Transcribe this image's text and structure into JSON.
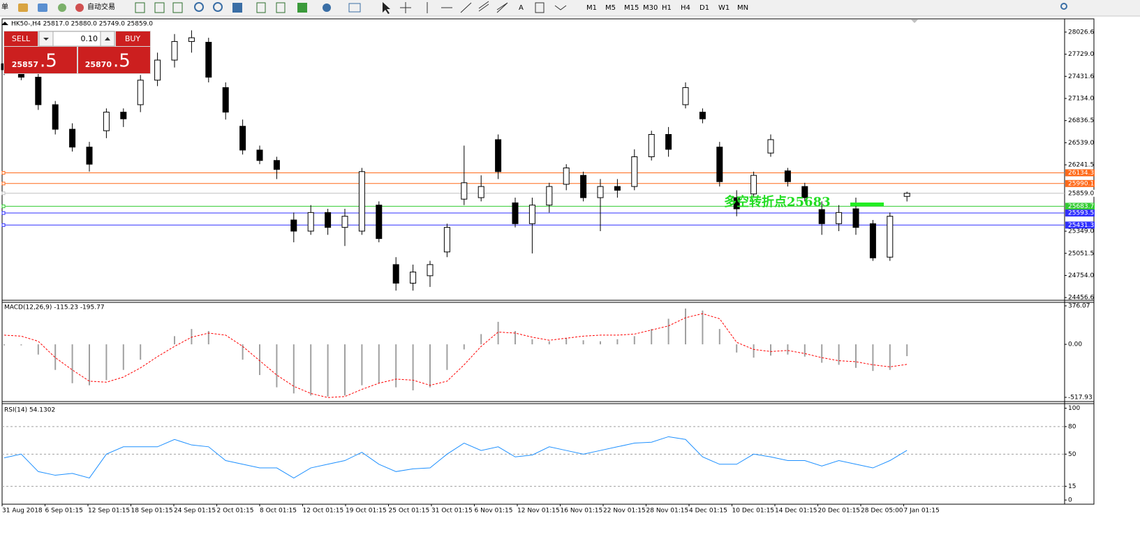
{
  "toolbar": {
    "items": [
      "单",
      "自动交易",
      "A",
      "M1",
      "M5",
      "M15",
      "M30",
      "H1",
      "H4",
      "D1",
      "W1",
      "MN"
    ]
  },
  "trade_panel": {
    "sell": "SELL",
    "buy": "BUY",
    "volume": "0.10",
    "bid_main": "25857",
    "bid_frac": ".5",
    "ask_main": "25870",
    "ask_frac": ".5"
  },
  "time_axis": [
    "31 Aug 2018",
    "6 Sep 01:15",
    "12 Sep 01:15",
    "18 Sep 01:15",
    "24 Sep 01:15",
    "2 Oct 01:15",
    "8 Oct 01:15",
    "12 Oct 01:15",
    "19 Oct 01:15",
    "25 Oct 01:15",
    "31 Oct 01:15",
    "6 Nov 01:15",
    "12 Nov 01:15",
    "16 Nov 01:15",
    "22 Nov 01:15",
    "28 Nov 01:15",
    "4 Dec 01:15",
    "10 Dec 01:15",
    "14 Dec 01:15",
    "20 Dec 01:15",
    "28 Dec 05:00",
    "7 Jan 01:15"
  ],
  "chart_data": [
    {
      "type": "candlestick",
      "title": "HK50-,H4  25817.0 25880.0 25749.0 25859.0",
      "annotation": "多空转折点25683",
      "open": [
        27600,
        27520,
        27420,
        27050,
        26720,
        26480,
        26700,
        26950,
        27050,
        27380,
        27650,
        27900,
        27890,
        27280,
        26760,
        26440,
        26300,
        25500,
        25350,
        25600,
        25400,
        25350,
        25700,
        24900,
        24650,
        24750,
        25070,
        25780,
        25800,
        26580,
        25730,
        25450,
        25700,
        25980,
        26100,
        25800,
        25950,
        25950,
        26350,
        26650,
        27050,
        26950,
        26480,
        25800,
        25850,
        26400,
        26160,
        25950,
        25640,
        25450,
        25650,
        25450,
        25000,
        25817
      ],
      "high": [
        27700,
        27600,
        27480,
        27100,
        26800,
        26550,
        27000,
        27000,
        27450,
        27750,
        28000,
        28050,
        27950,
        27350,
        26850,
        26500,
        26350,
        25600,
        25700,
        25650,
        25650,
        26200,
        25750,
        25000,
        24900,
        24950,
        25450,
        26500,
        26100,
        26650,
        25800,
        25800,
        26000,
        26250,
        26150,
        26050,
        26050,
        26450,
        26700,
        26750,
        27350,
        27000,
        26550,
        25900,
        26150,
        26650,
        26200,
        26000,
        25750,
        25700,
        25800,
        25500,
        25600,
        25880
      ],
      "low": [
        27450,
        27380,
        26980,
        26650,
        26420,
        26150,
        26600,
        26750,
        26950,
        27300,
        27550,
        27750,
        27350,
        26850,
        26380,
        26250,
        26050,
        25200,
        25300,
        25300,
        25150,
        25300,
        25200,
        24550,
        24550,
        24600,
        25000,
        25700,
        25750,
        26050,
        25400,
        25050,
        25600,
        25900,
        25750,
        25350,
        25800,
        25900,
        26300,
        26350,
        27000,
        26800,
        25950,
        25550,
        25800,
        26350,
        25950,
        25750,
        25300,
        25350,
        25300,
        24950,
        24950,
        25749
      ],
      "close": [
        27520,
        27420,
        27050,
        26720,
        26480,
        26250,
        26950,
        26860,
        27380,
        27650,
        27900,
        27950,
        27420,
        26950,
        26440,
        26300,
        26180,
        25350,
        25600,
        25400,
        25550,
        26150,
        25250,
        24650,
        24800,
        24900,
        25400,
        26000,
        25950,
        26150,
        25450,
        25700,
        25950,
        26200,
        25800,
        25950,
        25900,
        26350,
        26650,
        26450,
        27280,
        26860,
        26015,
        25650,
        26100,
        26580,
        26015,
        25800,
        25450,
        25600,
        25400,
        24990,
        25550,
        25859
      ],
      "up_color": "#ffffff",
      "down_color": "#000000",
      "ylim": [
        24420,
        28195
      ],
      "yticks": [
        {
          "value": 28026.6,
          "label": "28026.6"
        },
        {
          "value": 27729.0,
          "label": "27729.0"
        },
        {
          "value": 27431.6,
          "label": "27431.6"
        },
        {
          "value": 27134.0,
          "label": "27134.0"
        },
        {
          "value": 26836.5,
          "label": "26836.5"
        },
        {
          "value": 26539.0,
          "label": "26539.0"
        },
        {
          "value": 26241.5,
          "label": "26241.5"
        },
        {
          "value": 25349.0,
          "label": "25349.0"
        },
        {
          "value": 25051.5,
          "label": "25051.5"
        },
        {
          "value": 24754.0,
          "label": "24754.0"
        },
        {
          "value": 24456.6,
          "label": "24456.6"
        }
      ],
      "levels": [
        {
          "value": 26134.3,
          "label": "26134.3",
          "color": "#ff6a1a"
        },
        {
          "value": 25990.1,
          "label": "25990.1",
          "color": "#ff6a1a"
        },
        {
          "value": 25859.0,
          "label": "25859.0",
          "color": "#c0c0c0"
        },
        {
          "value": 25683.7,
          "label": "25683.7",
          "color": "#33cc33"
        },
        {
          "value": 25593.5,
          "label": "25593.5",
          "color": "#3030ff"
        },
        {
          "value": 25431.3,
          "label": "25431.3",
          "color": "#3030ff"
        }
      ]
    },
    {
      "type": "macd",
      "title": "MACD(12,26,9) -115.23 -195.77",
      "histogram": [
        -10,
        -10,
        -100,
        -250,
        -380,
        -400,
        -350,
        -250,
        -150,
        0,
        80,
        150,
        130,
        0,
        -150,
        -300,
        -420,
        -480,
        -500,
        -510,
        -500,
        -400,
        -380,
        -420,
        -450,
        -420,
        -250,
        -50,
        100,
        220,
        130,
        50,
        30,
        60,
        40,
        30,
        50,
        80,
        150,
        250,
        350,
        330,
        150,
        -80,
        -130,
        -110,
        -100,
        -120,
        -180,
        -200,
        -230,
        -260,
        -250,
        -115.23
      ],
      "signal": [
        90,
        80,
        30,
        -130,
        -250,
        -360,
        -370,
        -320,
        -230,
        -120,
        -20,
        70,
        110,
        90,
        -20,
        -160,
        -300,
        -410,
        -480,
        -520,
        -510,
        -440,
        -380,
        -340,
        -350,
        -400,
        -360,
        -200,
        -20,
        120,
        110,
        70,
        40,
        60,
        80,
        90,
        90,
        100,
        140,
        180,
        260,
        300,
        250,
        20,
        -50,
        -70,
        -60,
        -90,
        -130,
        -160,
        -170,
        -200,
        -220,
        -195.77
      ],
      "histogram_color": "#a0a0a0",
      "signal_color": "#ff0000",
      "ylim": [
        -559,
        410
      ],
      "yticks": [
        376.07,
        {
          "value": 0,
          "label": "0.00"
        },
        -517.93
      ]
    },
    {
      "type": "line",
      "title": "RSI(14) 54.1302",
      "values": [
        46,
        50,
        31,
        27,
        29,
        24,
        50,
        58,
        58,
        58,
        66,
        60,
        58,
        43,
        39,
        35,
        35,
        24,
        35,
        39,
        43,
        52,
        39,
        31,
        34,
        35,
        50,
        62,
        54,
        58,
        47,
        49,
        58,
        54,
        50,
        54,
        58,
        62,
        63,
        69,
        66,
        47,
        39,
        39,
        50,
        47,
        43,
        43,
        37,
        43,
        39,
        35,
        43,
        54.1302
      ],
      "color": "#1e90ff",
      "ylim": [
        -3,
        105
      ],
      "yticks": [
        100,
        80,
        50,
        15,
        0
      ],
      "level_lines": [
        80,
        50,
        15
      ]
    }
  ]
}
